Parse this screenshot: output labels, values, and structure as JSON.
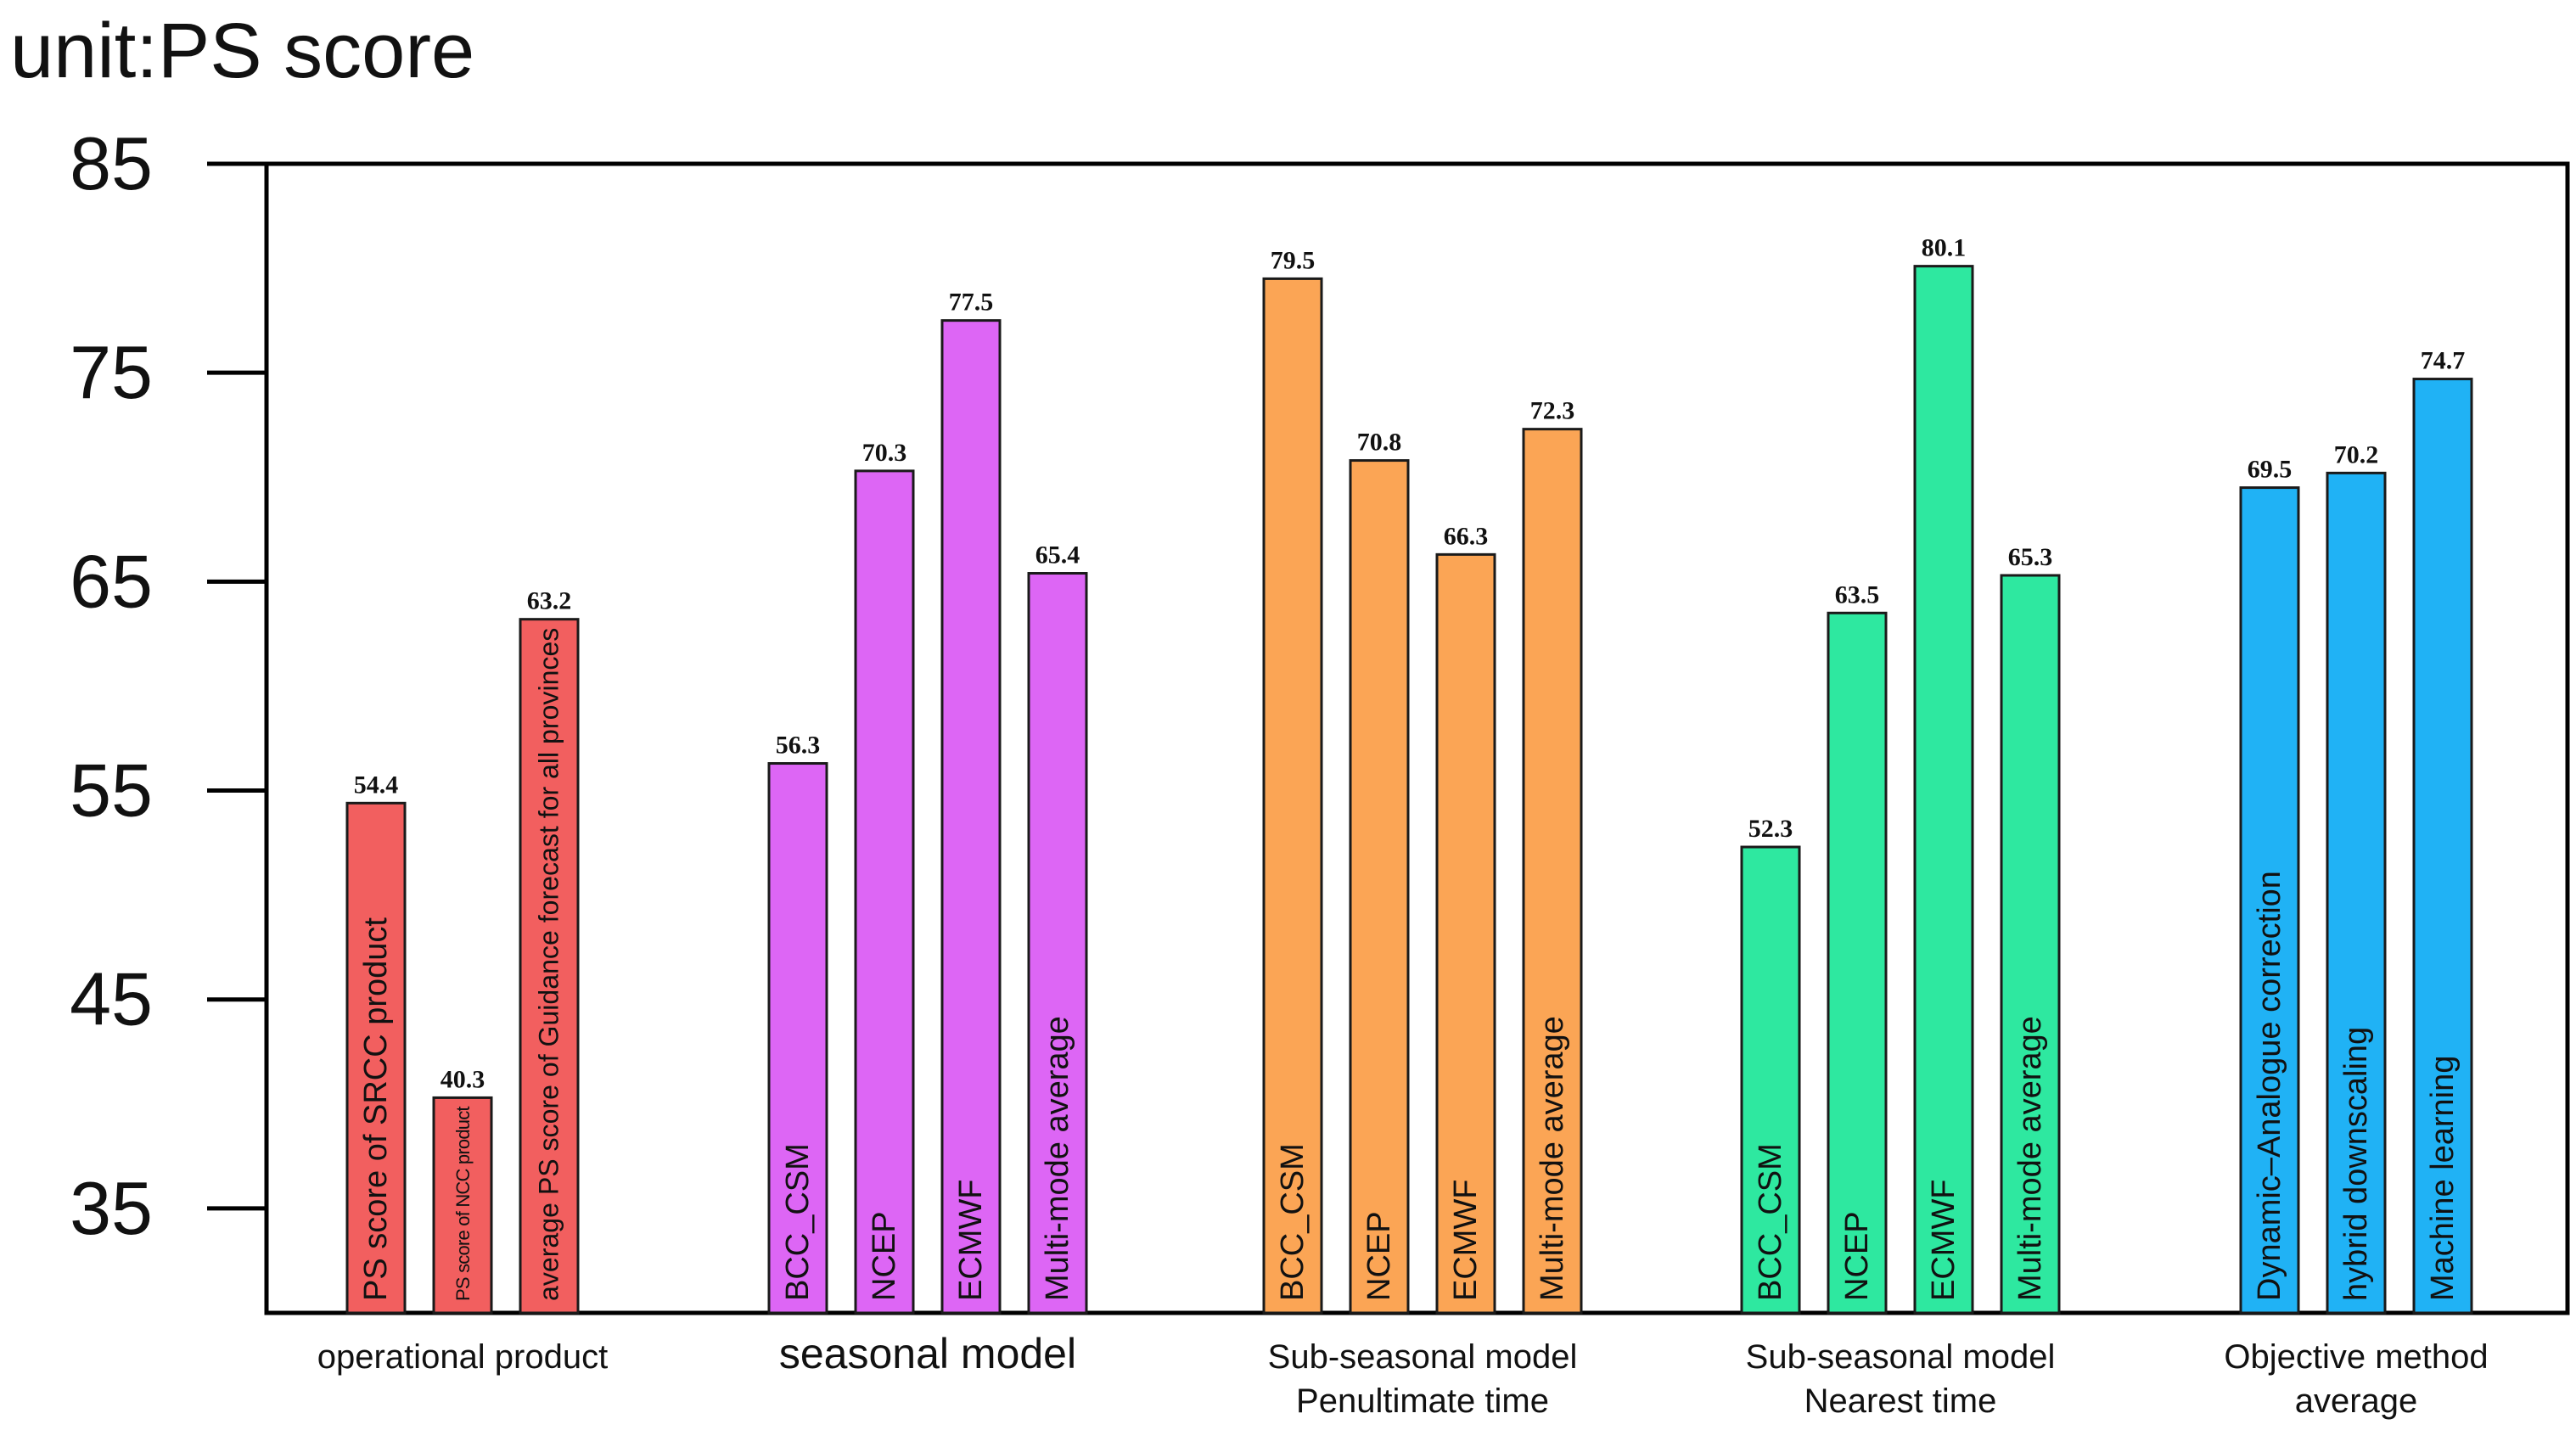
{
  "unit_label": "unit:PS score",
  "chart_data": {
    "type": "bar",
    "title": "",
    "ylabel": "unit:PS score",
    "xlabel": "",
    "ylim": [
      30,
      85
    ],
    "yticks": [
      35,
      45,
      55,
      65,
      75,
      85
    ],
    "grid": false,
    "groups": [
      {
        "name_lines": [
          "operational product"
        ],
        "bars": [
          {
            "label": "PS score of SRCC product",
            "value": 54.4,
            "color": "#f25f5f",
            "small": false
          },
          {
            "label": "PS score of NCC product",
            "value": 40.3,
            "color": "#f25f5f",
            "small": true
          },
          {
            "label": "average PS score of Guidance forecast for all provinces",
            "value": 63.2,
            "color": "#f25f5f",
            "small": false
          }
        ]
      },
      {
        "name_lines": [
          "seasonal model"
        ],
        "bars": [
          {
            "label": "BCC_CSM",
            "value": 56.3,
            "color": "#dd66f5",
            "small": false
          },
          {
            "label": "NCEP",
            "value": 70.3,
            "color": "#dd66f5",
            "small": false
          },
          {
            "label": "ECMWF",
            "value": 77.5,
            "color": "#dd66f5",
            "small": false
          },
          {
            "label": "Multi-mode average",
            "value": 65.4,
            "color": "#dd66f5",
            "small": false
          }
        ]
      },
      {
        "name_lines": [
          "Sub-seasonal model",
          "Penultimate time"
        ],
        "bars": [
          {
            "label": "BCC_CSM",
            "value": 79.5,
            "color": "#fba555",
            "small": false
          },
          {
            "label": "NCEP",
            "value": 70.8,
            "color": "#fba555",
            "small": false
          },
          {
            "label": "ECMWF",
            "value": 66.3,
            "color": "#fba555",
            "small": false
          },
          {
            "label": "Multi-mode average",
            "value": 72.3,
            "color": "#fba555",
            "small": false
          }
        ]
      },
      {
        "name_lines": [
          "Sub-seasonal model",
          "Nearest time"
        ],
        "bars": [
          {
            "label": "BCC_CSM",
            "value": 52.3,
            "color": "#2ee8a0",
            "small": false
          },
          {
            "label": "NCEP",
            "value": 63.5,
            "color": "#2ee8a0",
            "small": false
          },
          {
            "label": "ECMWF",
            "value": 80.1,
            "color": "#2ee8a0",
            "small": false
          },
          {
            "label": "Multi-mode average",
            "value": 65.3,
            "color": "#2ee8a0",
            "small": false
          }
        ]
      },
      {
        "name_lines": [
          "Objective method",
          "average"
        ],
        "bars": [
          {
            "label": "Dynamic–Analogue correction",
            "value": 69.5,
            "color": "#20b2f5",
            "small": false
          },
          {
            "label": "hybrid downscaling",
            "value": 70.2,
            "color": "#20b2f5",
            "small": false
          },
          {
            "label": "Machine learning",
            "value": 74.7,
            "color": "#20b2f5",
            "small": false
          }
        ]
      }
    ]
  }
}
